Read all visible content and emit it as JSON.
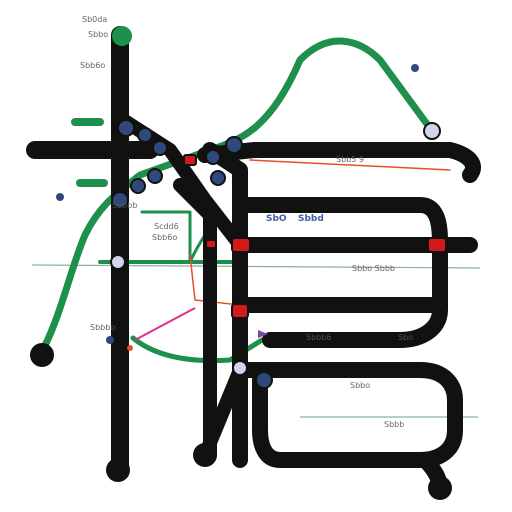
{
  "map": {
    "title": "",
    "colors": {
      "background": "#ffffff",
      "main_line": "#111111",
      "green_line": "#1f8f4e",
      "red_line": "#e4502e",
      "pink_line": "#e0308a",
      "thin_grey": "#6f9a9a",
      "station_fill": "#2f4a7a",
      "transfer_fill": "#d21a1a"
    },
    "labels": [
      {
        "id": "top-left-1",
        "text": "Sb0da",
        "style": "dark"
      },
      {
        "id": "top-left-2",
        "text": "Sbbo",
        "style": "dark"
      },
      {
        "id": "top-left-3",
        "text": "Sbb6o",
        "style": "dark"
      },
      {
        "id": "right-1",
        "text": "Sbb5 9",
        "style": "dark"
      },
      {
        "id": "center-box",
        "text": "Scdd6",
        "style": "dark"
      },
      {
        "id": "center-box-2",
        "text": "Sbb6o",
        "style": "dark"
      },
      {
        "id": "blue-1",
        "text": "SbO",
        "style": "blue"
      },
      {
        "id": "blue-2",
        "text": "Sbbd",
        "style": "blue"
      },
      {
        "id": "mid-right",
        "text": "Sbbo Sbbb",
        "style": "dark"
      },
      {
        "id": "left-low",
        "text": "Sbbbo",
        "style": "dark"
      },
      {
        "id": "mid-low",
        "text": "Sbbb6",
        "style": "dark"
      },
      {
        "id": "mid-low-2",
        "text": "Sbo",
        "style": "dark"
      },
      {
        "id": "bottom-right-1",
        "text": "Sbbo",
        "style": "dark"
      },
      {
        "id": "bottom-right-2",
        "text": "Sbbb",
        "style": "dark"
      },
      {
        "id": "bottom-right-3",
        "text": "Sbbbb",
        "style": "dark"
      }
    ]
  }
}
